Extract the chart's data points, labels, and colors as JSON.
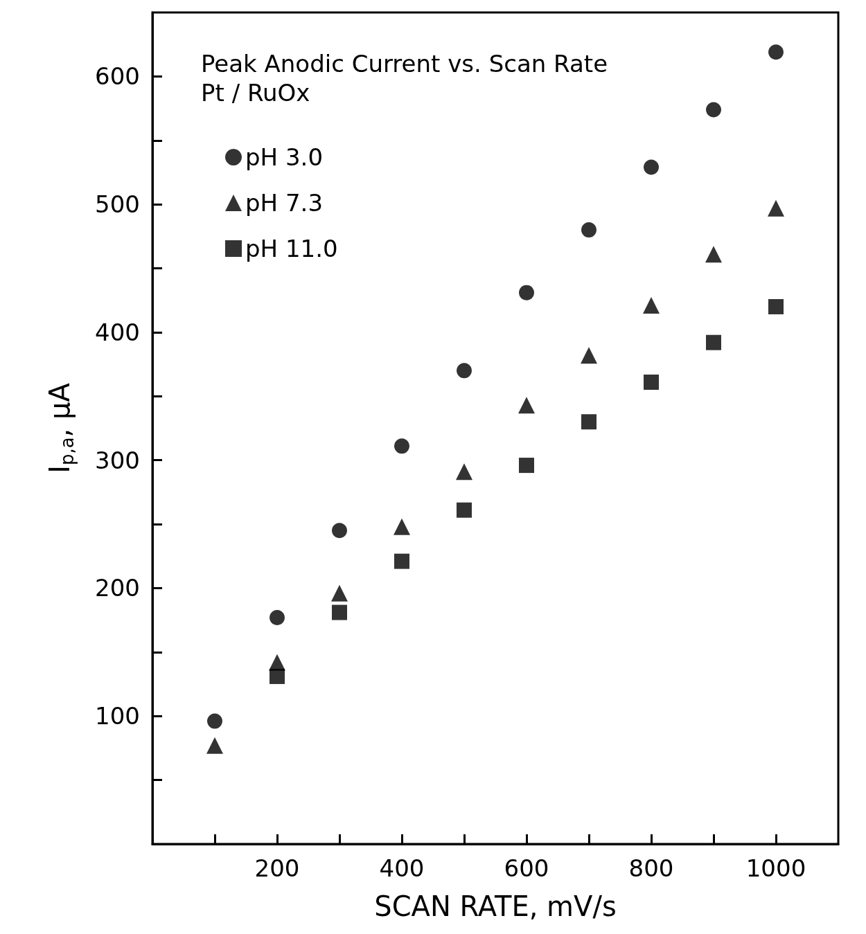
{
  "chart_data": {
    "type": "scatter",
    "title": "Peak Anodic Current vs. Scan Rate",
    "subtitle": "Pt / RuOx",
    "xlabel": "SCAN RATE, mV/s",
    "ylabel": "I$_{p,a}$, μA",
    "x": [
      100,
      200,
      300,
      400,
      500,
      600,
      700,
      800,
      900,
      1000
    ],
    "series": [
      {
        "name": "pH 3.0",
        "color": "#000000",
        "marker": "circle",
        "values": [
          96,
          177,
          245,
          311,
          370,
          431,
          480,
          529,
          574,
          619
        ]
      },
      {
        "name": "pH 7.3",
        "color": "#000000",
        "marker": "triangle",
        "values": [
          77,
          142,
          196,
          248,
          291,
          343,
          382,
          421,
          461,
          497
        ]
      },
      {
        "name": "pH 11.0",
        "color": "#000000",
        "marker": "square",
        "values": [
          null,
          131,
          181,
          221,
          261,
          296,
          330,
          361,
          392,
          420
        ]
      }
    ],
    "xlim": [
      0,
      1100
    ],
    "xticks": [
      {
        "value": 100,
        "label": null
      },
      200,
      {
        "value": 300,
        "label": null
      },
      400,
      {
        "value": 500,
        "label": null
      },
      600,
      {
        "value": 700,
        "label": null
      },
      800,
      {
        "value": 900,
        "label": null
      },
      1000
    ],
    "ylim": [
      0,
      650
    ],
    "yticks": [
      {
        "value": 50,
        "label": null
      },
      100,
      {
        "value": 150,
        "label": null
      },
      200,
      {
        "value": 250,
        "label": null
      },
      300,
      {
        "value": 350,
        "label": null
      },
      400,
      {
        "value": 450,
        "label": null
      },
      500,
      {
        "value": 550,
        "label": null
      },
      600
    ],
    "grid": false,
    "legend": "top left"
  }
}
